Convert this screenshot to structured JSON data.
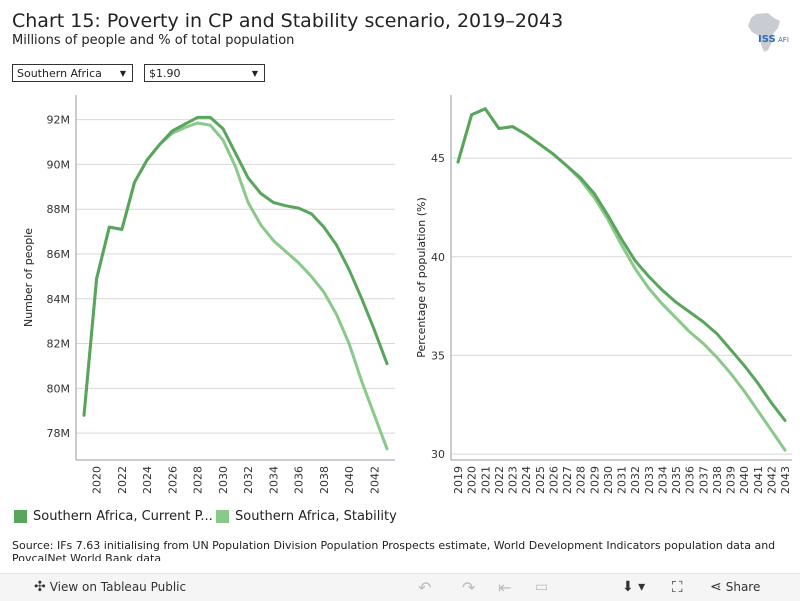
{
  "header": {
    "title": "Chart 15: Poverty in CP and Stability scenario, 2019–2043",
    "subtitle": "Millions of people and % of total population",
    "logo_text": "ISS",
    "logo_suffix": "AFI"
  },
  "filters": {
    "region": "Southern Africa",
    "poverty_line": "$1.90"
  },
  "colors": {
    "current_path": "#59a55d",
    "stability": "#8bc88b",
    "grid": "#d8d8d8",
    "axis": "#999999"
  },
  "legend": {
    "current_label": "Southern Africa, Current P...",
    "stability_label": "Southern Africa, Stability"
  },
  "source_text": "Source: IFs 7.63 initialising from UN Population Division Population Prospects estimate, World Development Indicators population data and PovcalNet World Bank data",
  "toolbar": {
    "view_label": "View on Tableau Public",
    "share_label": "Share"
  },
  "chart_data": [
    {
      "type": "line",
      "title": "",
      "ylabel": "Number of people",
      "xlabel": "",
      "ylim": [
        76.8,
        93.1
      ],
      "yticks": [
        78,
        80,
        82,
        84,
        86,
        88,
        90,
        92
      ],
      "ytick_labels": [
        "78M",
        "80M",
        "82M",
        "84M",
        "86M",
        "88M",
        "90M",
        "92M"
      ],
      "xticks": [
        2020,
        2022,
        2024,
        2026,
        2028,
        2030,
        2032,
        2034,
        2036,
        2038,
        2040,
        2042
      ],
      "x": [
        2019,
        2020,
        2021,
        2022,
        2023,
        2024,
        2025,
        2026,
        2027,
        2028,
        2029,
        2030,
        2031,
        2032,
        2033,
        2034,
        2035,
        2036,
        2037,
        2038,
        2039,
        2040,
        2041,
        2042,
        2043
      ],
      "series": [
        {
          "name": "Southern Africa, Current Path",
          "values": [
            78.8,
            84.9,
            87.2,
            87.1,
            89.2,
            90.2,
            90.9,
            91.5,
            91.8,
            92.1,
            92.1,
            91.6,
            90.5,
            89.4,
            88.7,
            88.3,
            88.15,
            88.05,
            87.8,
            87.2,
            86.4,
            85.3,
            84.0,
            82.6,
            81.1
          ]
        },
        {
          "name": "Southern Africa, Stability",
          "values": [
            78.8,
            84.9,
            87.2,
            87.1,
            89.2,
            90.2,
            90.9,
            91.4,
            91.65,
            91.85,
            91.75,
            91.1,
            89.9,
            88.3,
            87.3,
            86.6,
            86.1,
            85.6,
            85.0,
            84.3,
            83.3,
            82.0,
            80.3,
            78.8,
            77.3
          ]
        }
      ]
    },
    {
      "type": "line",
      "title": "",
      "ylabel": "Percentage of population (%)",
      "xlabel": "",
      "ylim": [
        29.7,
        48.2
      ],
      "yticks": [
        30,
        35,
        40,
        45
      ],
      "ytick_labels": [
        "30",
        "35",
        "40",
        "45"
      ],
      "xticks": [
        2019,
        2020,
        2021,
        2022,
        2023,
        2024,
        2025,
        2026,
        2027,
        2028,
        2029,
        2030,
        2031,
        2032,
        2033,
        2034,
        2035,
        2036,
        2037,
        2038,
        2039,
        2040,
        2041,
        2042,
        2043
      ],
      "x": [
        2019,
        2020,
        2021,
        2022,
        2023,
        2024,
        2025,
        2026,
        2027,
        2028,
        2029,
        2030,
        2031,
        2032,
        2033,
        2034,
        2035,
        2036,
        2037,
        2038,
        2039,
        2040,
        2041,
        2042,
        2043
      ],
      "series": [
        {
          "name": "Southern Africa, Current Path",
          "values": [
            44.8,
            47.2,
            47.5,
            46.5,
            46.6,
            46.2,
            45.7,
            45.2,
            44.6,
            44.0,
            43.2,
            42.1,
            40.9,
            39.8,
            39.0,
            38.3,
            37.7,
            37.2,
            36.7,
            36.1,
            35.3,
            34.5,
            33.6,
            32.6,
            31.7
          ]
        },
        {
          "name": "Southern Africa, Stability",
          "values": [
            44.8,
            47.2,
            47.5,
            46.5,
            46.6,
            46.2,
            45.7,
            45.2,
            44.6,
            43.9,
            43.0,
            41.9,
            40.6,
            39.4,
            38.4,
            37.6,
            36.9,
            36.2,
            35.6,
            34.9,
            34.1,
            33.2,
            32.2,
            31.2,
            30.2
          ]
        }
      ]
    }
  ]
}
